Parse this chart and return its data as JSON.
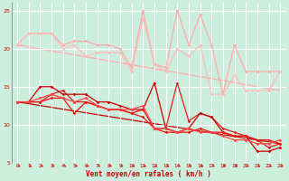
{
  "x": [
    0,
    1,
    2,
    3,
    4,
    5,
    6,
    7,
    8,
    9,
    10,
    11,
    12,
    13,
    14,
    15,
    16,
    17,
    18,
    19,
    20,
    21,
    22,
    23
  ],
  "series": [
    {
      "y": [
        20.5,
        22,
        22,
        22,
        20.5,
        21,
        21,
        20.5,
        20.5,
        20,
        17.5,
        25,
        18,
        17.5,
        25,
        20.5,
        24.5,
        20.5,
        14,
        20.5,
        17,
        17,
        17,
        17
      ],
      "color": "#ffaaaa",
      "lw": 0.9,
      "marker": "D",
      "ms": 1.8
    },
    {
      "y": [
        20.5,
        22,
        22,
        22,
        20,
        20.5,
        19,
        19.5,
        19.5,
        19.5,
        17,
        24,
        18,
        17,
        20,
        19,
        20.5,
        14,
        14,
        16.5,
        14.5,
        14.5,
        14.5,
        17
      ],
      "color": "#ffbbbb",
      "lw": 0.9,
      "marker": "D",
      "ms": 1.8
    },
    {
      "y": [
        13,
        13,
        13,
        14,
        14.5,
        13,
        13,
        12.5,
        12,
        12,
        11.5,
        11,
        9.5,
        9.5,
        15.5,
        10.5,
        11.5,
        11,
        9.5,
        9,
        8.5,
        8,
        8,
        7.5
      ],
      "color": "#dd2222",
      "lw": 0.9,
      "marker": "D",
      "ms": 1.8
    },
    {
      "y": [
        13,
        13,
        15,
        15,
        14,
        14,
        14,
        13,
        13,
        12.5,
        12,
        12,
        15.5,
        9.5,
        9,
        9.5,
        11.5,
        11,
        9,
        8.5,
        8.5,
        6.5,
        6.5,
        7
      ],
      "color": "#cc0000",
      "lw": 0.9,
      "marker": "D",
      "ms": 1.8
    },
    {
      "y": [
        13,
        13,
        13,
        13.5,
        13.5,
        11.5,
        13,
        12.5,
        12,
        12,
        11.5,
        12,
        9.5,
        9,
        9,
        9,
        9.5,
        9,
        9,
        8.5,
        8.5,
        8,
        7,
        7.5
      ],
      "color": "#ee1111",
      "lw": 0.9,
      "marker": "D",
      "ms": 1.8
    },
    {
      "y": [
        13,
        13,
        13.5,
        14,
        13.5,
        13,
        13.5,
        12.5,
        12,
        12,
        12,
        12.5,
        9.5,
        9.5,
        9,
        9.5,
        9,
        9,
        8.5,
        8,
        8,
        7.5,
        7.5,
        8
      ],
      "color": "#ff4444",
      "lw": 0.9,
      "marker": "D",
      "ms": 1.8
    }
  ],
  "trend_lines": [
    {
      "start_x": 0,
      "start_y": 13,
      "end_x": 23,
      "end_y": 7.5,
      "color": "#cc0000",
      "lw": 0.9
    },
    {
      "start_x": 0,
      "start_y": 20.5,
      "end_x": 23,
      "end_y": 14.5,
      "color": "#ffaaaa",
      "lw": 0.9
    }
  ],
  "xlabel": "Vent moyen/en rafales ( km/h )",
  "xlim": [
    -0.5,
    23.5
  ],
  "ylim": [
    5,
    26
  ],
  "yticks": [
    5,
    10,
    15,
    20,
    25
  ],
  "xticks": [
    0,
    1,
    2,
    3,
    4,
    5,
    6,
    7,
    8,
    9,
    10,
    11,
    12,
    13,
    14,
    15,
    16,
    17,
    18,
    19,
    20,
    21,
    22,
    23
  ],
  "bg_color": "#cceedd",
  "grid_color": "white",
  "tick_color": "#cc0000",
  "label_color": "#cc0000",
  "arrow_color": "#cc2222"
}
